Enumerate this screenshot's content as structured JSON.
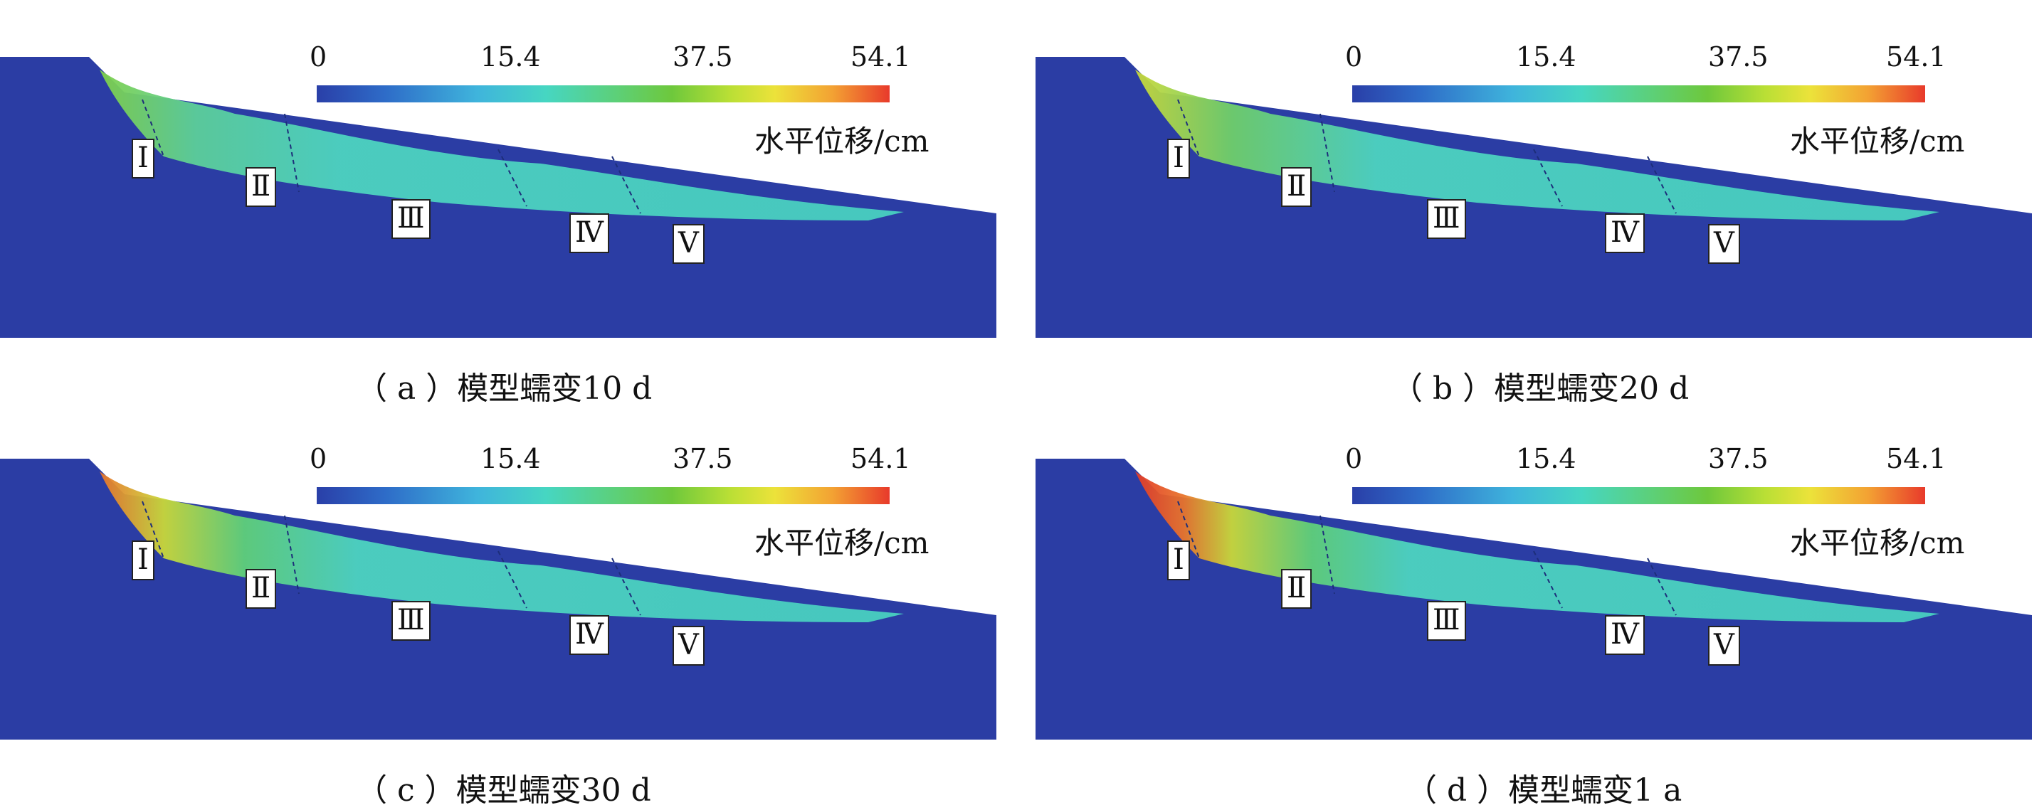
{
  "colorbar": {
    "ticks": [
      "0",
      "15.4",
      "37.5",
      "54.1"
    ],
    "unit_label": "水平位移/cm",
    "colors": [
      "#2a3fa8",
      "#3fb4dc",
      "#5cd07a",
      "#ece23a",
      "#e83a2b"
    ]
  },
  "section_markers": [
    "Ⅰ",
    "Ⅱ",
    "Ⅲ",
    "Ⅳ",
    "Ⅴ"
  ],
  "panels": [
    {
      "caption": "（ a ）模型蠕变10 d",
      "crest_color": "#7fd04a"
    },
    {
      "caption": "（ b ）模型蠕变20 d",
      "crest_color": "#c9d83a"
    },
    {
      "caption": "（ c ）模型蠕变30 d",
      "crest_color": "#e8742c"
    },
    {
      "caption": "（ d ）模型蠕变1 a",
      "crest_color": "#e23a28"
    }
  ]
}
